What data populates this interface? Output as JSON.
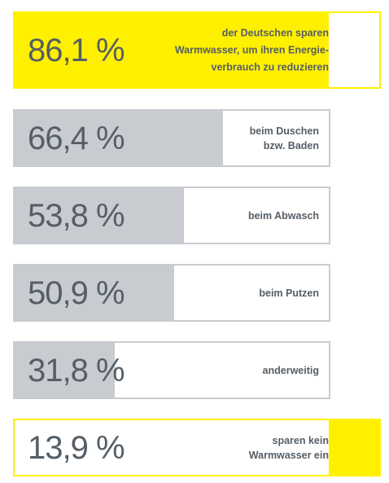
{
  "chart_data": {
    "type": "bar",
    "orientation": "horizontal",
    "xlim": [
      0,
      100
    ],
    "categories": [
      "der Deutschen sparen\nWarmwasser, um ihren Energie-\nverbrauch zu reduzieren",
      "beim Duschen\nbzw. Baden",
      "beim Abwasch",
      "beim Putzen",
      "anderweitig",
      "sparen kein\nWarmwasser ein"
    ],
    "value_labels": [
      "86,1 %",
      "66,4 %",
      "53,8 %",
      "50,9 %",
      "31,8 %",
      "13,9 %"
    ],
    "values": [
      86.1,
      66.4,
      53.8,
      50.9,
      31.8,
      13.9
    ],
    "fill_from": [
      "left",
      "left",
      "left",
      "left",
      "left",
      "right"
    ],
    "styles": [
      "highlight",
      "grey",
      "grey",
      "grey",
      "grey",
      "highlight"
    ]
  },
  "colors": {
    "highlight_fill": "#fff000",
    "highlight_border": "#fff000",
    "grey_fill": "#c8ccd0",
    "grey_border": "#c8ccd0",
    "value_text": "#555e66",
    "label_text": "#555e66"
  }
}
